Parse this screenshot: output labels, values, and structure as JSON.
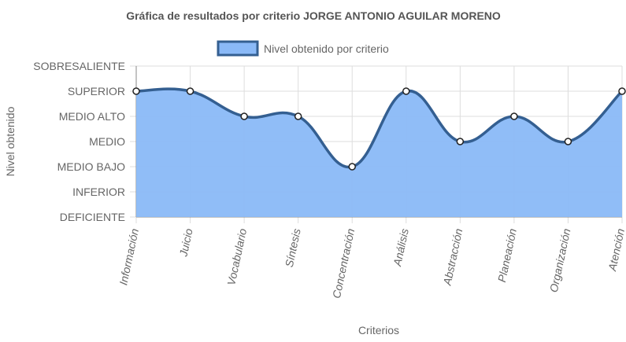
{
  "chart_data": {
    "type": "area",
    "title": "Gráfica de resultados por criterio JORGE ANTONIO AGUILAR MORENO",
    "xlabel": "Criterios",
    "ylabel": "Nivel obtenido",
    "categories": [
      "Información",
      "Juicio",
      "Vocabulario",
      "Síntesis",
      "Concentración",
      "Análisis",
      "Abstracción",
      "Planeación",
      "Organización",
      "Atención"
    ],
    "y_levels": [
      "DEFICIENTE",
      "INFERIOR",
      "MEDIO BAJO",
      "MEDIO",
      "MEDIO ALTO",
      "SUPERIOR",
      "SOBRESALIENTE"
    ],
    "ylim": [
      0,
      6
    ],
    "series": [
      {
        "name": "Nivel obtenido por criterio",
        "values": [
          5,
          5,
          4,
          4,
          2,
          5,
          3,
          4,
          3,
          5
        ]
      }
    ],
    "legend_position": "top",
    "grid": true,
    "colors": {
      "fill": "#8ab9f7",
      "line": "#345f91",
      "point_fill": "#ffffff",
      "point_stroke": "#222222",
      "grid": "#dddddd"
    }
  }
}
